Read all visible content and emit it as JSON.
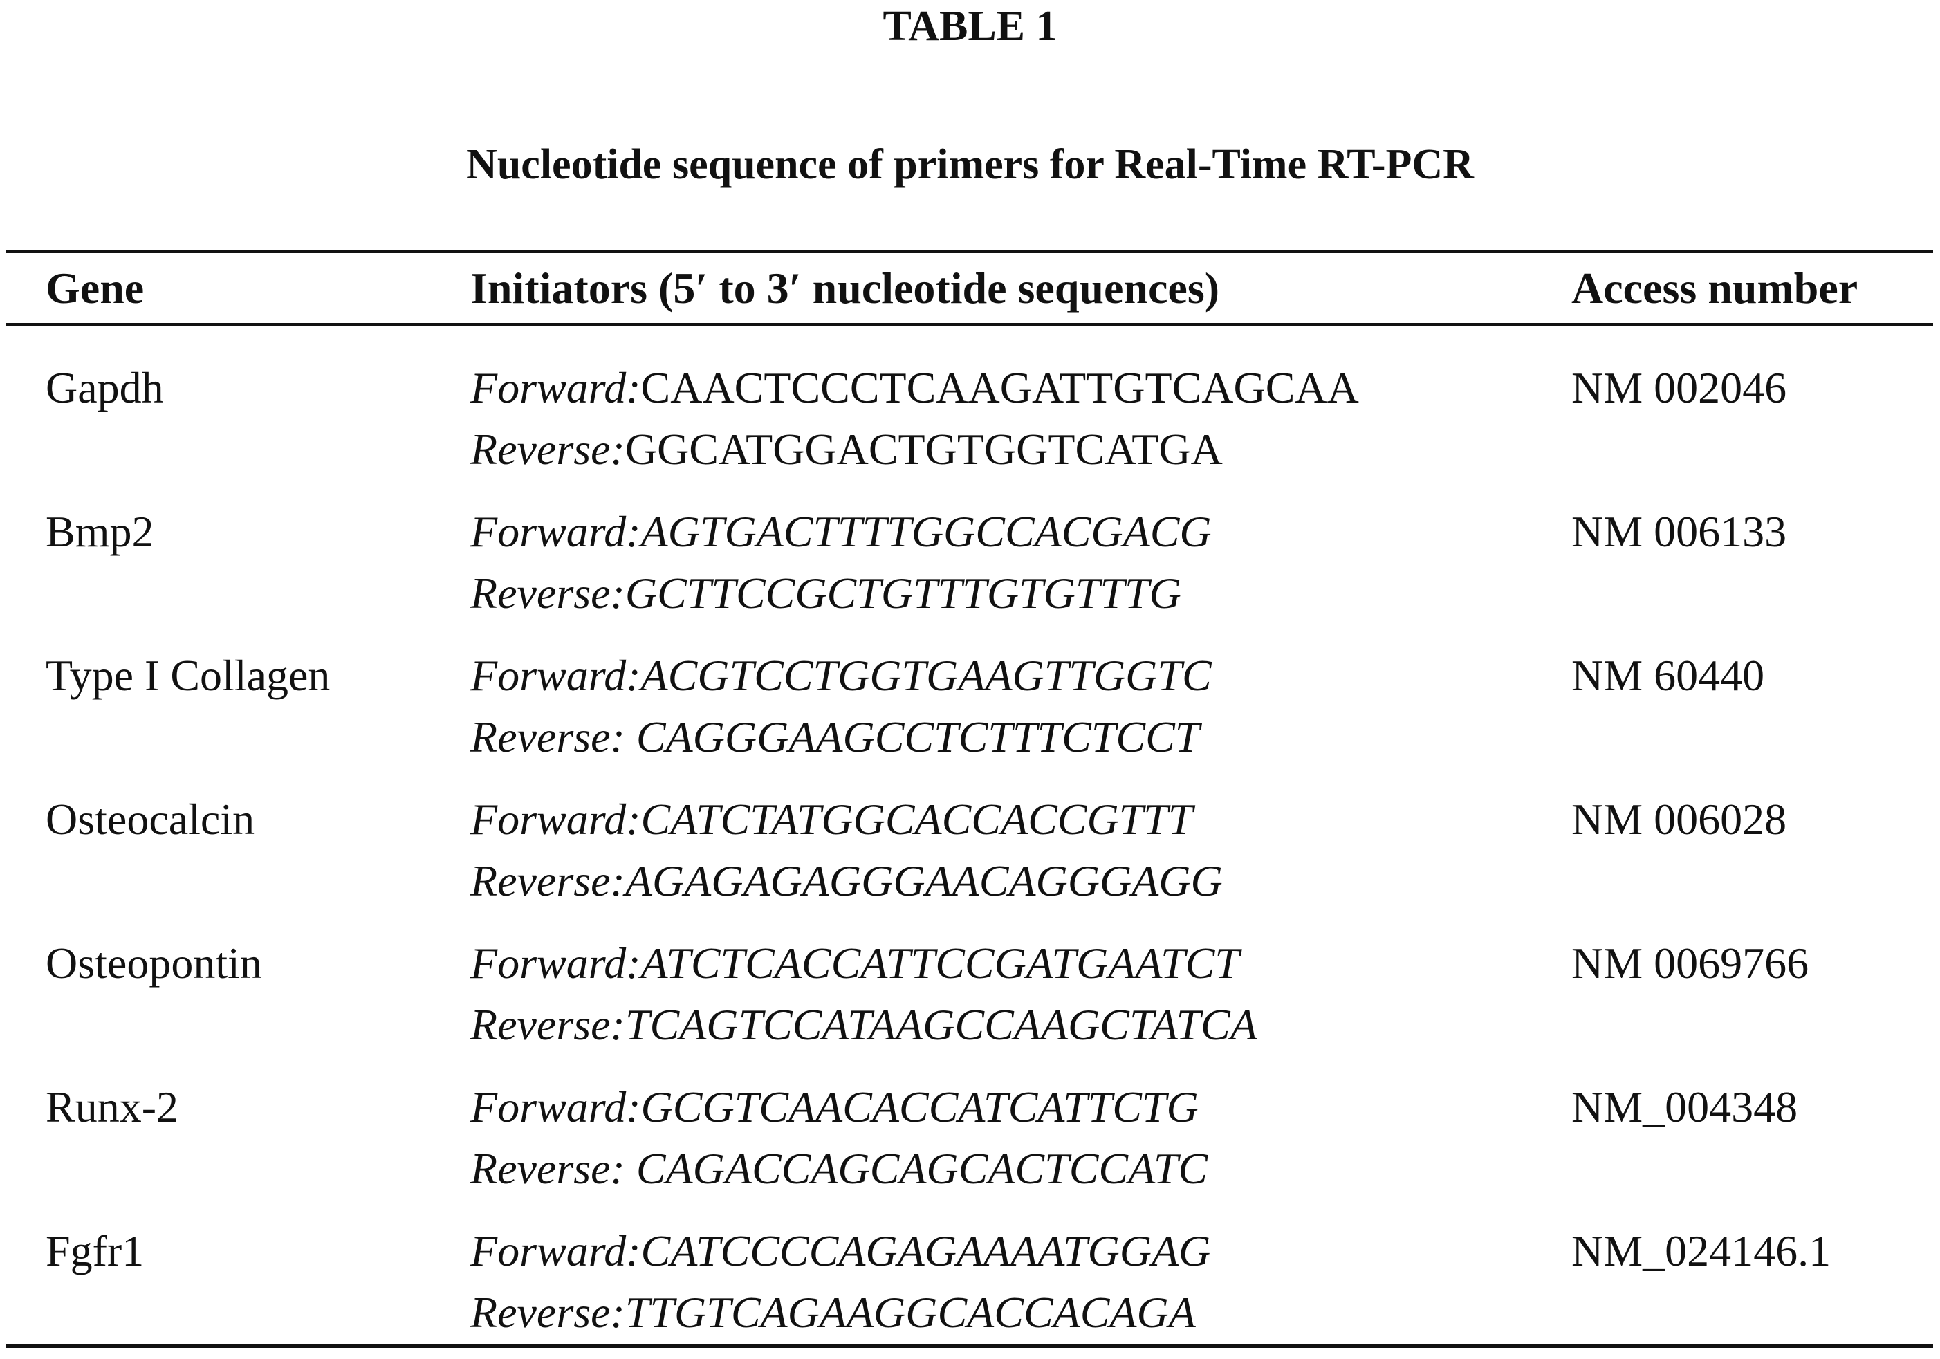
{
  "header": {
    "title": "TABLE 1",
    "subtitle": "Nucleotide sequence of primers for Real-Time RT-PCR"
  },
  "table": {
    "columns": [
      "Gene",
      "Initiators (5′ to 3′ nucleotide sequences)",
      "Access number"
    ],
    "rows": [
      {
        "gene": "Gapdh",
        "lines": [
          {
            "label": "Forward:",
            "sequence": "CAACTCCCTCAAGATTGTCAGCAA"
          },
          {
            "label": "Reverse:",
            "sequence": "GGCATGGACTGTGGTCATGA"
          }
        ],
        "access": "NM 002046"
      },
      {
        "gene": "Bmp2",
        "lines": [
          {
            "label": "Forward:",
            "sequence": "AGTGACTTTTGGCCACGACG"
          },
          {
            "label": "Reverse:",
            "sequence": "GCTTCCGCTGTTTGTGTTTG"
          }
        ],
        "access": "NM 006133"
      },
      {
        "gene": "Type I Collagen",
        "lines": [
          {
            "label": "Forward:",
            "sequence": "ACGTCCTGGTGAAGTTGGTC"
          },
          {
            "label": "Reverse:",
            "sequence": " CAGGGAAGCCTCTTTCTCCT"
          }
        ],
        "access": "NM 60440"
      },
      {
        "gene": "Osteocalcin",
        "lines": [
          {
            "label": "Forward:",
            "sequence": "CATCTATGGCACCACCGTTT"
          },
          {
            "label": "Reverse:",
            "sequence": "AGAGAGAGGGAACAGGGAGG"
          }
        ],
        "access": "NM 006028"
      },
      {
        "gene": "Osteopontin",
        "lines": [
          {
            "label": "Forward:",
            "sequence": "ATCTCACCATTCCGATGAATCT"
          },
          {
            "label": "Reverse:",
            "sequence": "TCAGTCCATAAGCCAAGCTATCA"
          }
        ],
        "access": "NM 0069766"
      },
      {
        "gene": "Runx-2",
        "lines": [
          {
            "label": "Forward:",
            "sequence": "GCGTCAACACCATCATTCTG"
          },
          {
            "label": "Reverse:",
            "sequence": " CAGACCAGCAGCACTCCATC"
          }
        ],
        "access": "NM_004348"
      },
      {
        "gene": "Fgfr1",
        "lines": [
          {
            "label": "Forward:",
            "sequence": "CATCCCCAGAGAAAATGGAG"
          },
          {
            "label": "Reverse:",
            "sequence": "TTGTCAGAAGGCACCACAGA"
          }
        ],
        "access": "NM_024146.1"
      }
    ]
  }
}
